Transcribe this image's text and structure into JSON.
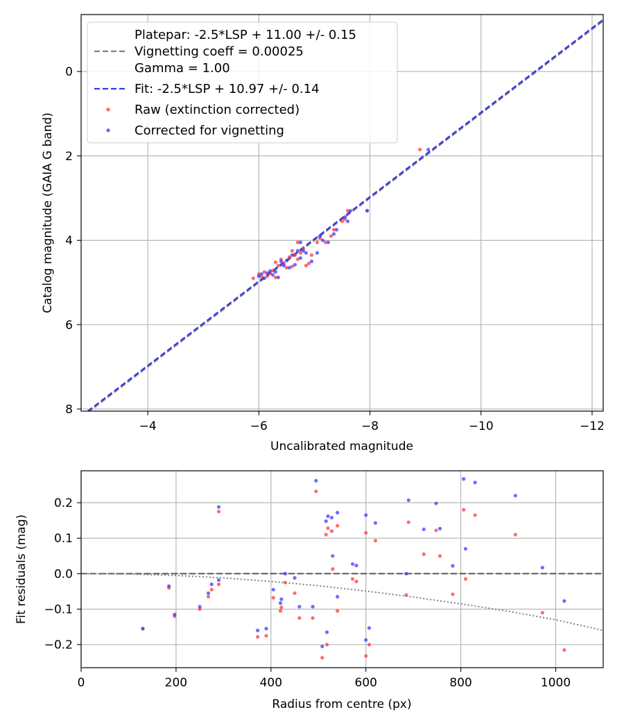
{
  "chart_data": [
    {
      "type": "scatter",
      "name": "calibration",
      "xlabel": "Uncalibrated magnitude",
      "ylabel": "Catalog magnitude (GAIA G band)",
      "xlim": [
        -2.8,
        -12.2
      ],
      "ylim": [
        8.05,
        -1.35
      ],
      "x_ticks": [
        -4,
        -6,
        -8,
        -10,
        -12
      ],
      "x_tick_labels": [
        "−4",
        "−6",
        "−8",
        "−10",
        "−12"
      ],
      "y_ticks": [
        0,
        2,
        4,
        6,
        8
      ],
      "y_tick_labels": [
        "0",
        "2",
        "4",
        "6",
        "8"
      ],
      "grid": true,
      "legend_position": "top-left",
      "legend": {
        "platepar_line1": "Platepar: -2.5*LSP + 11.00 +/- 0.15",
        "platepar_line2": "Vignetting coeff = 0.00025",
        "platepar_line3": "Gamma = 1.00",
        "fit": "Fit: -2.5*LSP + 10.97 +/- 0.14",
        "raw": "Raw (extinction corrected)",
        "corrected": "Corrected for vignetting"
      },
      "lines": [
        {
          "name": "Platepar",
          "style": "dashed",
          "color": "#7f7f7f",
          "intercept": 11.0
        },
        {
          "name": "Fit",
          "style": "dashed",
          "color": "#3333ee",
          "intercept": 10.97
        }
      ],
      "series": [
        {
          "name": "Raw (extinction corrected)",
          "color": "#ff3333",
          "points": [
            [
              -5.9,
              4.9
            ],
            [
              -6.0,
              4.8
            ],
            [
              -6.05,
              4.87
            ],
            [
              -6.1,
              4.75
            ],
            [
              -6.15,
              4.85
            ],
            [
              -6.2,
              4.78
            ],
            [
              -6.25,
              4.72
            ],
            [
              -6.3,
              4.88
            ],
            [
              -6.3,
              4.52
            ],
            [
              -6.35,
              4.6
            ],
            [
              -6.4,
              4.45
            ],
            [
              -6.45,
              4.55
            ],
            [
              -6.5,
              4.65
            ],
            [
              -6.55,
              4.4
            ],
            [
              -6.6,
              4.25
            ],
            [
              -6.6,
              4.62
            ],
            [
              -6.65,
              4.35
            ],
            [
              -6.7,
              4.45
            ],
            [
              -6.7,
              4.05
            ],
            [
              -6.75,
              4.3
            ],
            [
              -6.8,
              4.2
            ],
            [
              -6.85,
              4.6
            ],
            [
              -6.9,
              4.55
            ],
            [
              -6.95,
              4.35
            ],
            [
              -7.05,
              4.05
            ],
            [
              -7.1,
              3.95
            ],
            [
              -7.2,
              4.05
            ],
            [
              -7.3,
              3.9
            ],
            [
              -7.35,
              3.75
            ],
            [
              -7.5,
              3.55
            ],
            [
              -7.55,
              3.5
            ],
            [
              -7.6,
              3.3
            ],
            [
              -7.95,
              3.3
            ],
            [
              -8.9,
              1.85
            ]
          ]
        },
        {
          "name": "Corrected for vignetting",
          "color": "#3333ff",
          "points": [
            [
              -6.0,
              4.85
            ],
            [
              -6.05,
              4.8
            ],
            [
              -6.1,
              4.9
            ],
            [
              -6.15,
              4.78
            ],
            [
              -6.2,
              4.73
            ],
            [
              -6.25,
              4.82
            ],
            [
              -6.3,
              4.75
            ],
            [
              -6.35,
              4.88
            ],
            [
              -6.4,
              4.5
            ],
            [
              -6.45,
              4.6
            ],
            [
              -6.5,
              4.48
            ],
            [
              -6.55,
              4.65
            ],
            [
              -6.6,
              4.35
            ],
            [
              -6.65,
              4.58
            ],
            [
              -6.7,
              4.25
            ],
            [
              -6.75,
              4.42
            ],
            [
              -6.75,
              4.05
            ],
            [
              -6.8,
              4.25
            ],
            [
              -6.85,
              4.3
            ],
            [
              -6.95,
              4.5
            ],
            [
              -7.05,
              4.3
            ],
            [
              -7.1,
              3.9
            ],
            [
              -7.15,
              4.0
            ],
            [
              -7.25,
              4.05
            ],
            [
              -7.35,
              3.85
            ],
            [
              -7.4,
              3.75
            ],
            [
              -7.55,
              3.45
            ],
            [
              -7.6,
              3.55
            ],
            [
              -7.65,
              3.3
            ],
            [
              -7.95,
              3.3
            ],
            [
              -9.05,
              1.85
            ]
          ]
        }
      ]
    },
    {
      "type": "scatter",
      "name": "residuals",
      "xlabel": "Radius from centre (px)",
      "ylabel": "Fit residuals (mag)",
      "xlim": [
        0,
        1100
      ],
      "ylim": [
        -0.265,
        0.29
      ],
      "x_ticks": [
        0,
        200,
        400,
        600,
        800,
        1000
      ],
      "x_tick_labels": [
        "0",
        "200",
        "400",
        "600",
        "800",
        "1000"
      ],
      "y_ticks": [
        -0.2,
        -0.1,
        0.0,
        0.1,
        0.2
      ],
      "y_tick_labels": [
        "−0.2",
        "−0.1",
        "0.0",
        "0.1",
        "0.2"
      ],
      "grid": true,
      "zero_line": {
        "style": "dashed",
        "color": "#555555"
      },
      "vignetting_curve": {
        "style": "dotted",
        "color": "#7f7f7f",
        "x": [
          0,
          100,
          200,
          300,
          400,
          500,
          600,
          700,
          800,
          900,
          1000,
          1100
        ],
        "y": [
          0.0,
          -0.001,
          -0.005,
          -0.012,
          -0.022,
          -0.034,
          -0.049,
          -0.066,
          -0.085,
          -0.106,
          -0.13,
          -0.16
        ]
      },
      "series": [
        {
          "name": "Raw (extinction corrected)",
          "color": "#ff3333",
          "points": [
            [
              130,
              -0.155
            ],
            [
              185,
              -0.04
            ],
            [
              197,
              -0.12
            ],
            [
              250,
              -0.1
            ],
            [
              268,
              -0.065
            ],
            [
              275,
              -0.045
            ],
            [
              290,
              0.175
            ],
            [
              290,
              -0.03
            ],
            [
              372,
              -0.178
            ],
            [
              390,
              -0.175
            ],
            [
              405,
              -0.068
            ],
            [
              420,
              -0.105
            ],
            [
              422,
              -0.095
            ],
            [
              430,
              -0.025
            ],
            [
              450,
              -0.055
            ],
            [
              460,
              -0.125
            ],
            [
              488,
              -0.125
            ],
            [
              495,
              0.232
            ],
            [
              508,
              -0.237
            ],
            [
              516,
              0.11
            ],
            [
              518,
              -0.2
            ],
            [
              520,
              0.128
            ],
            [
              528,
              0.12
            ],
            [
              530,
              0.013
            ],
            [
              540,
              0.135
            ],
            [
              540,
              -0.105
            ],
            [
              572,
              -0.015
            ],
            [
              580,
              -0.022
            ],
            [
              600,
              0.115
            ],
            [
              600,
              -0.232
            ],
            [
              607,
              -0.2
            ],
            [
              620,
              0.093
            ],
            [
              685,
              -0.06
            ],
            [
              690,
              0.145
            ],
            [
              722,
              0.055
            ],
            [
              748,
              0.122
            ],
            [
              756,
              0.05
            ],
            [
              783,
              -0.058
            ],
            [
              806,
              0.18
            ],
            [
              810,
              -0.015
            ],
            [
              830,
              0.165
            ],
            [
              915,
              0.11
            ],
            [
              972,
              -0.11
            ],
            [
              1018,
              -0.215
            ]
          ]
        },
        {
          "name": "Corrected for vignetting",
          "color": "#3333ff",
          "points": [
            [
              130,
              -0.155
            ],
            [
              185,
              -0.035
            ],
            [
              197,
              -0.115
            ],
            [
              250,
              -0.093
            ],
            [
              268,
              -0.055
            ],
            [
              275,
              -0.03
            ],
            [
              290,
              0.188
            ],
            [
              290,
              -0.018
            ],
            [
              372,
              -0.16
            ],
            [
              390,
              -0.155
            ],
            [
              405,
              -0.045
            ],
            [
              420,
              -0.083
            ],
            [
              422,
              -0.072
            ],
            [
              430,
              0.0
            ],
            [
              450,
              -0.012
            ],
            [
              460,
              -0.093
            ],
            [
              488,
              -0.093
            ],
            [
              495,
              0.262
            ],
            [
              508,
              -0.205
            ],
            [
              516,
              0.148
            ],
            [
              518,
              -0.165
            ],
            [
              520,
              0.162
            ],
            [
              528,
              0.158
            ],
            [
              530,
              0.05
            ],
            [
              540,
              0.172
            ],
            [
              540,
              -0.065
            ],
            [
              572,
              0.027
            ],
            [
              580,
              0.023
            ],
            [
              600,
              0.165
            ],
            [
              600,
              -0.187
            ],
            [
              607,
              -0.153
            ],
            [
              620,
              0.143
            ],
            [
              685,
              0.0
            ],
            [
              690,
              0.207
            ],
            [
              722,
              0.125
            ],
            [
              748,
              0.198
            ],
            [
              756,
              0.127
            ],
            [
              783,
              0.022
            ],
            [
              806,
              0.267
            ],
            [
              810,
              0.07
            ],
            [
              830,
              0.257
            ],
            [
              915,
              0.22
            ],
            [
              972,
              0.017
            ],
            [
              1018,
              -0.077
            ]
          ]
        }
      ]
    }
  ]
}
